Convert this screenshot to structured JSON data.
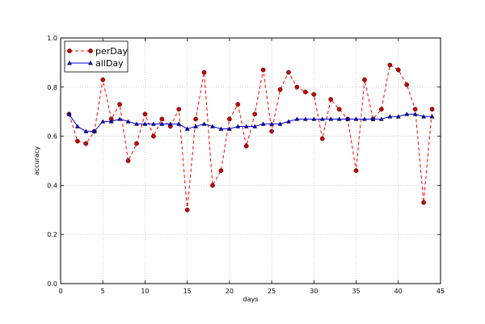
{
  "chart_data": {
    "type": "line",
    "xlabel": "days",
    "ylabel": "accuracy",
    "xlim": [
      0,
      45
    ],
    "ylim": [
      0.0,
      1.0
    ],
    "xticks": [
      "0",
      "5",
      "10",
      "15",
      "20",
      "25",
      "30",
      "35",
      "40",
      "45"
    ],
    "yticks": [
      "0.0",
      "0.2",
      "0.4",
      "0.6",
      "0.8",
      "1.0"
    ],
    "grid": true,
    "legend": {
      "position": "top-left",
      "entries": [
        "perDay",
        "allDay"
      ]
    },
    "x": [
      1,
      2,
      3,
      4,
      5,
      6,
      7,
      8,
      9,
      10,
      11,
      12,
      13,
      14,
      15,
      16,
      17,
      18,
      19,
      20,
      21,
      22,
      23,
      24,
      25,
      26,
      27,
      28,
      29,
      30,
      31,
      32,
      33,
      34,
      35,
      36,
      37,
      38,
      39,
      40,
      41,
      42,
      43,
      44
    ],
    "series": [
      {
        "name": "perDay",
        "color": "#ff0000",
        "marker_color": "#cc0000",
        "line_style": "dashed",
        "marker": "circle",
        "values": [
          0.69,
          0.58,
          0.57,
          0.62,
          0.83,
          0.67,
          0.73,
          0.5,
          0.57,
          0.69,
          0.6,
          0.67,
          0.64,
          0.71,
          0.3,
          0.67,
          0.86,
          0.4,
          0.46,
          0.67,
          0.73,
          0.56,
          0.69,
          0.87,
          0.62,
          0.79,
          0.86,
          0.8,
          0.78,
          0.77,
          0.59,
          0.75,
          0.71,
          0.67,
          0.46,
          0.83,
          0.67,
          0.71,
          0.89,
          0.87,
          0.81,
          0.71,
          0.33,
          0.71
        ]
      },
      {
        "name": "allDay",
        "color": "#0000cc",
        "marker_color": "#0000cc",
        "line_style": "solid",
        "marker": "triangle",
        "values": [
          0.69,
          0.64,
          0.62,
          0.62,
          0.66,
          0.66,
          0.67,
          0.66,
          0.65,
          0.65,
          0.65,
          0.65,
          0.65,
          0.65,
          0.63,
          0.64,
          0.65,
          0.64,
          0.63,
          0.63,
          0.64,
          0.64,
          0.64,
          0.65,
          0.65,
          0.65,
          0.66,
          0.67,
          0.67,
          0.67,
          0.67,
          0.67,
          0.67,
          0.67,
          0.67,
          0.67,
          0.67,
          0.67,
          0.68,
          0.68,
          0.69,
          0.69,
          0.68,
          0.68
        ]
      }
    ]
  }
}
